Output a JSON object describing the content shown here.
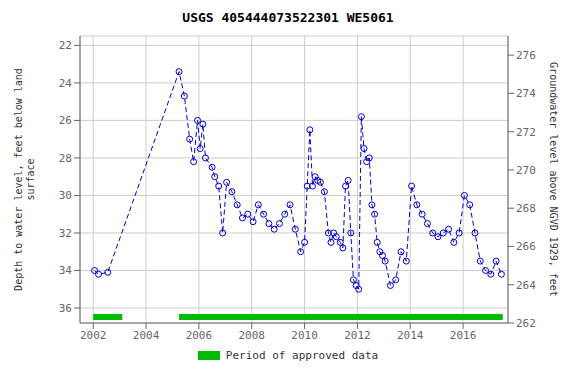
{
  "chart_data": {
    "type": "line",
    "title": "USGS 405444073522301 WE5061",
    "ylabel": "Depth to water level, feet below land\nsurface",
    "y2label": "Groundwater level above NGVD 1929, feet",
    "xlim": [
      2001.5,
      2017.7
    ],
    "ylim": [
      36.8,
      21.5
    ],
    "y2lim": [
      262,
      277
    ],
    "xticks": [
      2002,
      2004,
      2006,
      2008,
      2010,
      2012,
      2014,
      2016
    ],
    "yticks": [
      22,
      24,
      26,
      28,
      30,
      32,
      34,
      36
    ],
    "y2ticks": [
      262,
      264,
      266,
      268,
      270,
      272,
      274,
      276
    ],
    "grid": true,
    "legend": "bottom",
    "x": [
      2002.05,
      2002.2,
      2002.55,
      2005.25,
      2005.45,
      2005.65,
      2005.8,
      2005.95,
      2006.05,
      2006.15,
      2006.25,
      2006.5,
      2006.6,
      2006.75,
      2006.9,
      2007.05,
      2007.25,
      2007.45,
      2007.65,
      2007.85,
      2008.05,
      2008.25,
      2008.45,
      2008.65,
      2008.85,
      2009.05,
      2009.25,
      2009.45,
      2009.65,
      2009.85,
      2010.0,
      2010.1,
      2010.2,
      2010.3,
      2010.4,
      2010.5,
      2010.6,
      2010.75,
      2010.9,
      2011.0,
      2011.1,
      2011.2,
      2011.35,
      2011.45,
      2011.55,
      2011.65,
      2011.75,
      2011.85,
      2011.95,
      2012.05,
      2012.15,
      2012.25,
      2012.35,
      2012.45,
      2012.55,
      2012.65,
      2012.75,
      2012.85,
      2012.95,
      2013.05,
      2013.25,
      2013.45,
      2013.65,
      2013.85,
      2014.05,
      2014.25,
      2014.45,
      2014.65,
      2014.85,
      2015.05,
      2015.25,
      2015.45,
      2015.65,
      2015.85,
      2016.05,
      2016.25,
      2016.45,
      2016.65,
      2016.85,
      2017.05,
      2017.25,
      2017.45
    ],
    "series": [
      {
        "color": "#0000cc",
        "line_style": "dashed",
        "marker": "circle",
        "values": [
          34.0,
          34.2,
          34.1,
          23.4,
          24.7,
          27.0,
          28.2,
          26.0,
          27.5,
          26.2,
          28.0,
          28.5,
          29.0,
          29.5,
          32.0,
          29.3,
          29.8,
          30.5,
          31.2,
          31.0,
          31.4,
          30.5,
          31.0,
          31.5,
          31.8,
          31.5,
          31.0,
          30.5,
          31.8,
          33.0,
          32.5,
          29.5,
          26.5,
          29.5,
          29.0,
          29.2,
          29.3,
          29.8,
          32.0,
          32.5,
          32.0,
          32.2,
          32.5,
          32.8,
          29.5,
          29.2,
          32.0,
          34.5,
          34.8,
          35.0,
          25.8,
          27.5,
          28.2,
          28.0,
          30.5,
          31.0,
          32.5,
          33.0,
          33.2,
          33.5,
          34.8,
          34.5,
          33.0,
          33.5,
          29.5,
          30.5,
          31.0,
          31.5,
          32.0,
          32.2,
          32.0,
          31.8,
          32.5,
          32.0,
          30.0,
          30.5,
          32.0,
          33.5,
          34.0,
          34.2,
          33.5,
          34.2
        ]
      }
    ],
    "segments": {
      "name": "Period of approved data",
      "color": "#00bb00",
      "ranges": [
        [
          2002.0,
          2003.1
        ],
        [
          2005.25,
          2017.5
        ]
      ]
    }
  }
}
